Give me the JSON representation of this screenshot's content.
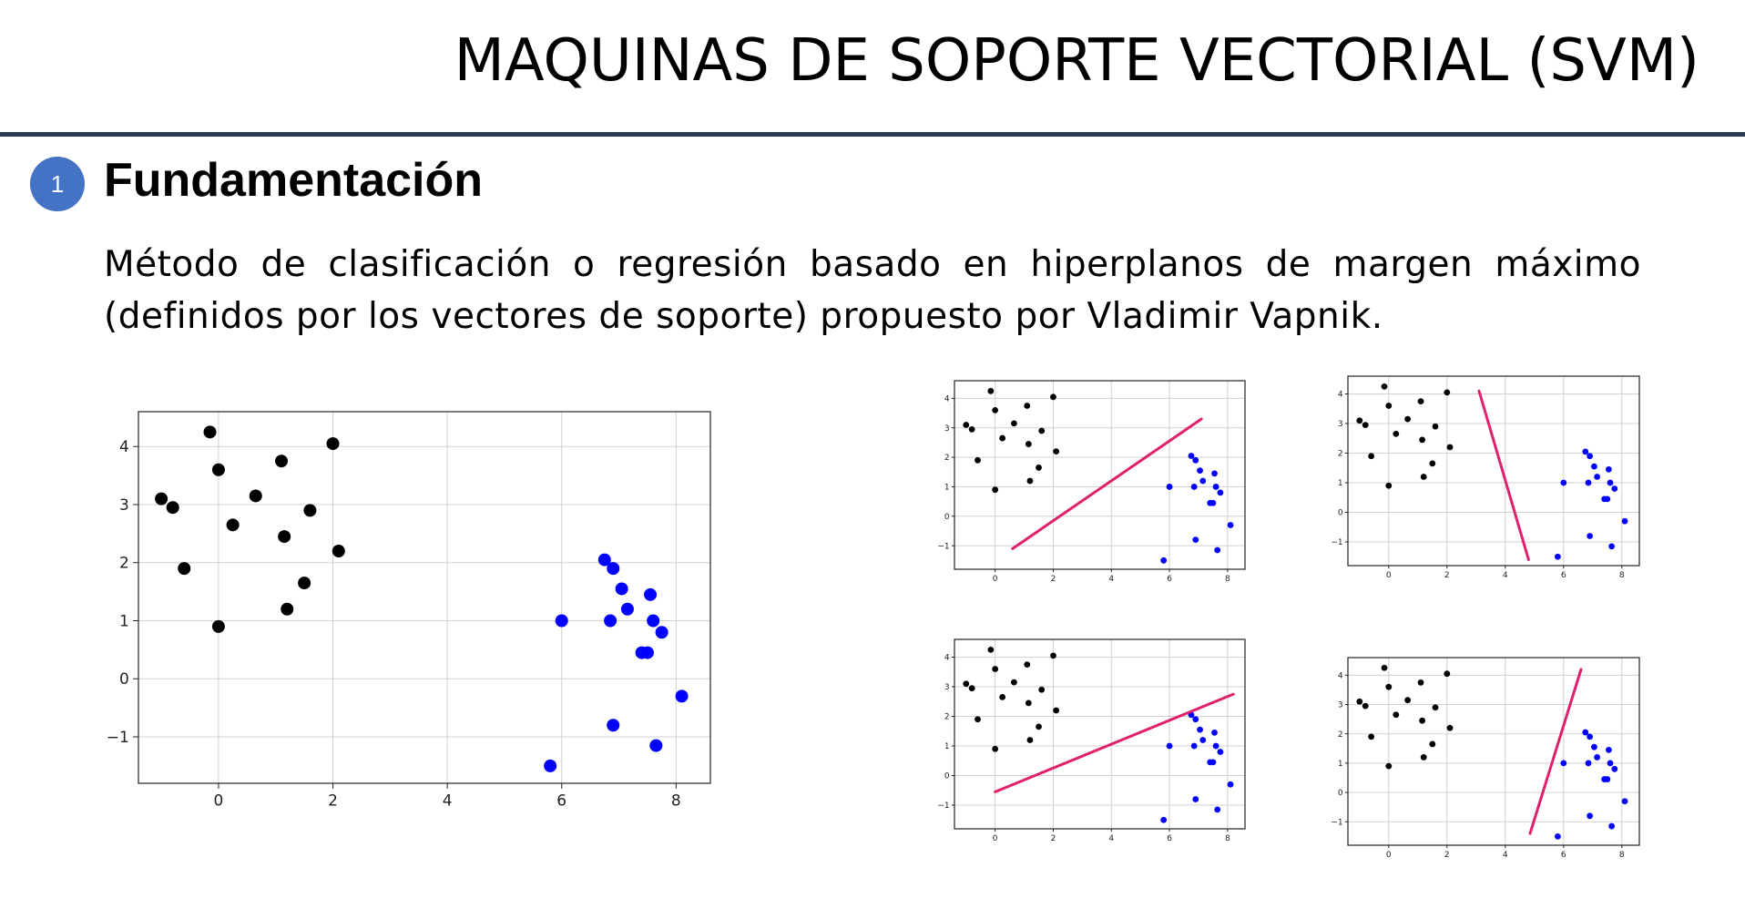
{
  "slide": {
    "title": "MAQUINAS DE SOPORTE VECTORIAL (SVM)",
    "section_number": "1",
    "section_title": "Fundamentación",
    "body": "Método de clasificación o regresión basado en hiperplanos de margen máximo (definidos por los vectores de soporte) propuesto por  Vladimir Vapnik."
  },
  "colors": {
    "rule": "#2b3a55",
    "badge": "#4472c4",
    "class_a": "#000000",
    "class_b": "#0000ff",
    "hyperplane": "#e0206a",
    "grid": "#d0d0d0"
  },
  "chart_data": [
    {
      "id": "main",
      "type": "scatter",
      "xlim": [
        -1.4,
        8.6
      ],
      "ylim": [
        -1.8,
        4.6
      ],
      "xticks": [
        0,
        2,
        4,
        6,
        8
      ],
      "yticks": [
        -1,
        0,
        1,
        2,
        3,
        4
      ],
      "xtick_labels": [
        "0",
        "2",
        "4",
        "6",
        "8"
      ],
      "ytick_labels": [
        "−1",
        "0",
        "1",
        "2",
        "3",
        "4"
      ],
      "grid": true,
      "series": [
        {
          "color": "#000000",
          "points": [
            [
              -1.0,
              3.1
            ],
            [
              -0.8,
              2.95
            ],
            [
              -0.6,
              1.9
            ],
            [
              -0.15,
              4.25
            ],
            [
              0.0,
              3.6
            ],
            [
              0.0,
              0.9
            ],
            [
              0.25,
              2.65
            ],
            [
              0.65,
              3.15
            ],
            [
              1.1,
              3.75
            ],
            [
              1.15,
              2.45
            ],
            [
              1.2,
              1.2
            ],
            [
              1.5,
              1.65
            ],
            [
              1.6,
              2.9
            ],
            [
              2.0,
              4.05
            ],
            [
              2.1,
              2.2
            ]
          ]
        },
        {
          "color": "#0000ff",
          "points": [
            [
              5.8,
              -1.5
            ],
            [
              6.0,
              1.0
            ],
            [
              6.75,
              2.05
            ],
            [
              6.85,
              1.0
            ],
            [
              6.9,
              1.9
            ],
            [
              6.9,
              -0.8
            ],
            [
              7.05,
              1.55
            ],
            [
              7.15,
              1.2
            ],
            [
              7.4,
              0.45
            ],
            [
              7.5,
              0.45
            ],
            [
              7.55,
              1.45
            ],
            [
              7.6,
              1.0
            ],
            [
              7.65,
              -1.15
            ],
            [
              7.75,
              0.8
            ],
            [
              8.1,
              -0.3
            ]
          ]
        }
      ]
    },
    {
      "id": "small-top-left",
      "type": "scatter",
      "xlim": [
        -1.4,
        8.6
      ],
      "ylim": [
        -1.8,
        4.6
      ],
      "xticks": [
        0,
        2,
        4,
        6,
        8
      ],
      "yticks": [
        -1,
        0,
        1,
        2,
        3,
        4
      ],
      "xtick_labels": [
        "0",
        "2",
        "4",
        "6",
        "8"
      ],
      "ytick_labels": [
        "−1",
        "0",
        "1",
        "2",
        "3",
        "4"
      ],
      "grid": true,
      "line": [
        [
          0.6,
          -1.1
        ],
        [
          7.1,
          3.3
        ]
      ]
    },
    {
      "id": "small-top-right",
      "type": "scatter",
      "xlim": [
        -1.4,
        8.6
      ],
      "ylim": [
        -1.8,
        4.6
      ],
      "xticks": [
        0,
        2,
        4,
        6,
        8
      ],
      "yticks": [
        -1,
        0,
        1,
        2,
        3,
        4
      ],
      "xtick_labels": [
        "0",
        "2",
        "4",
        "6",
        "8"
      ],
      "ytick_labels": [
        "−1",
        "0",
        "1",
        "2",
        "3",
        "4"
      ],
      "grid": true,
      "line": [
        [
          3.1,
          4.1
        ],
        [
          4.8,
          -1.6
        ]
      ]
    },
    {
      "id": "small-bottom-left",
      "type": "scatter",
      "xlim": [
        -1.4,
        8.6
      ],
      "ylim": [
        -1.8,
        4.6
      ],
      "xticks": [
        0,
        2,
        4,
        6,
        8
      ],
      "yticks": [
        -1,
        0,
        1,
        2,
        3,
        4
      ],
      "xtick_labels": [
        "0",
        "2",
        "4",
        "6",
        "8"
      ],
      "ytick_labels": [
        "−1",
        "0",
        "1",
        "2",
        "3",
        "4"
      ],
      "grid": true,
      "line": [
        [
          0.0,
          -0.55
        ],
        [
          8.2,
          2.75
        ]
      ]
    },
    {
      "id": "small-bottom-right",
      "type": "scatter",
      "xlim": [
        -1.4,
        8.6
      ],
      "ylim": [
        -1.8,
        4.6
      ],
      "xticks": [
        0,
        2,
        4,
        6,
        8
      ],
      "yticks": [
        -1,
        0,
        1,
        2,
        3,
        4
      ],
      "xtick_labels": [
        "0",
        "2",
        "4",
        "6",
        "8"
      ],
      "ytick_labels": [
        "−1",
        "0",
        "1",
        "2",
        "3",
        "4"
      ],
      "grid": true,
      "line": [
        [
          4.85,
          -1.4
        ],
        [
          6.6,
          4.2
        ]
      ]
    }
  ]
}
